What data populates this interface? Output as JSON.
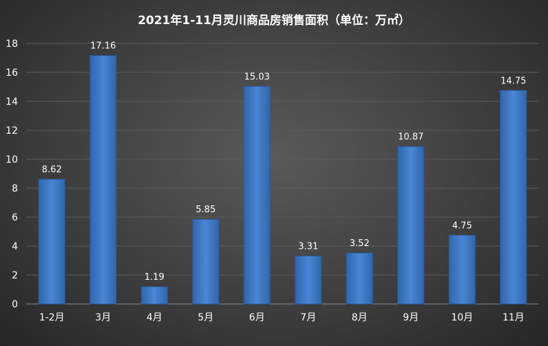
{
  "chart_data": {
    "type": "bar",
    "title": "2021年1-11月灵川商品房销售面积（单位：万㎡）",
    "categories": [
      "1-2月",
      "3月",
      "4月",
      "5月",
      "6月",
      "7月",
      "8月",
      "9月",
      "10月",
      "11月"
    ],
    "values": [
      8.62,
      17.16,
      1.19,
      5.85,
      15.03,
      3.31,
      3.52,
      10.87,
      4.75,
      14.75
    ],
    "data_labels": [
      "8.62",
      "17.16",
      "1.19",
      "5.85",
      "15.03",
      "3.31",
      "3.52",
      "10.87",
      "4.75",
      "14.75"
    ],
    "xlabel": "",
    "ylabel": "",
    "ylim": [
      0,
      18
    ],
    "yticks": [
      0,
      2,
      4,
      6,
      8,
      10,
      12,
      14,
      16,
      18
    ],
    "grid": true,
    "legend": "none",
    "colors": {
      "bar": "#3d7ac7",
      "bar_dark": "#2a5a99",
      "background": "#3e3e3e",
      "text": "#ffffff"
    }
  }
}
